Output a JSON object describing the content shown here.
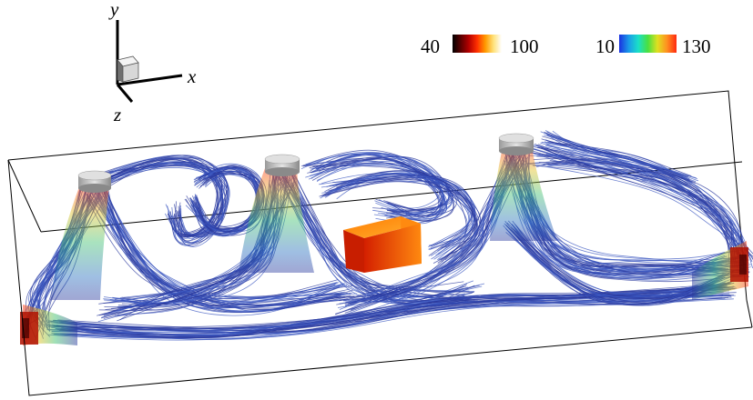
{
  "axes_triad": {
    "y_label": "y",
    "x_label": "x",
    "z_label": "z"
  },
  "colorbars": [
    {
      "min_label": "40",
      "max_label": "100",
      "colormap": [
        "#000000",
        "#5a0000",
        "#b40000",
        "#ff3000",
        "#ff9a00",
        "#ffe27a",
        "#ffffff"
      ]
    },
    {
      "min_label": "10",
      "max_label": "130",
      "colormap": [
        "#1a30e0",
        "#1a9be8",
        "#1ae0c8",
        "#4ae040",
        "#e0e020",
        "#ff9020",
        "#ff2a10"
      ]
    }
  ],
  "colors": {
    "streamline": "#2b3a9e",
    "streamline_alt": "#3b57c0",
    "box_outline": "#000000",
    "heater_top": "#ff7a00",
    "heater_side": "#e03000",
    "fan_cap": "#c8c8c8"
  }
}
